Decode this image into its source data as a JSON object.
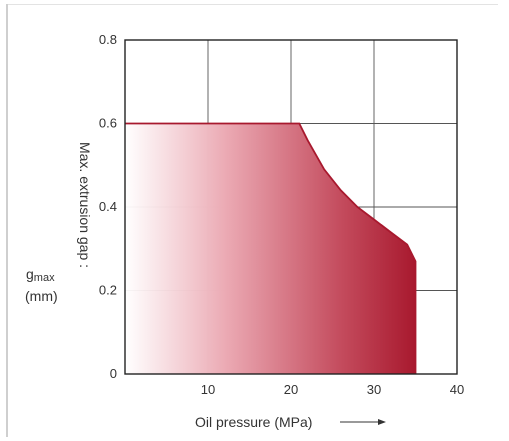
{
  "chart_data": {
    "type": "area",
    "xlabel": "Oil pressure (MPa)",
    "ylabel": "Max. extrusion gap :",
    "ylabel_symbol": "g",
    "ylabel_subscript": "max",
    "ylabel_unit": "(mm)",
    "xlim": [
      0,
      40
    ],
    "ylim": [
      0,
      0.8
    ],
    "x_ticks": [
      10,
      20,
      30,
      40
    ],
    "y_ticks": [
      "0",
      "0.2",
      "0.4",
      "0.6",
      "0.8"
    ],
    "grid": true,
    "series": [
      {
        "x": [
          0,
          21,
          22,
          24,
          26,
          28,
          30,
          32,
          34,
          35,
          35
        ],
        "y": [
          0.6,
          0.6,
          0.56,
          0.49,
          0.44,
          0.4,
          0.37,
          0.34,
          0.31,
          0.27,
          0
        ],
        "color": "#a8192e"
      }
    ]
  }
}
